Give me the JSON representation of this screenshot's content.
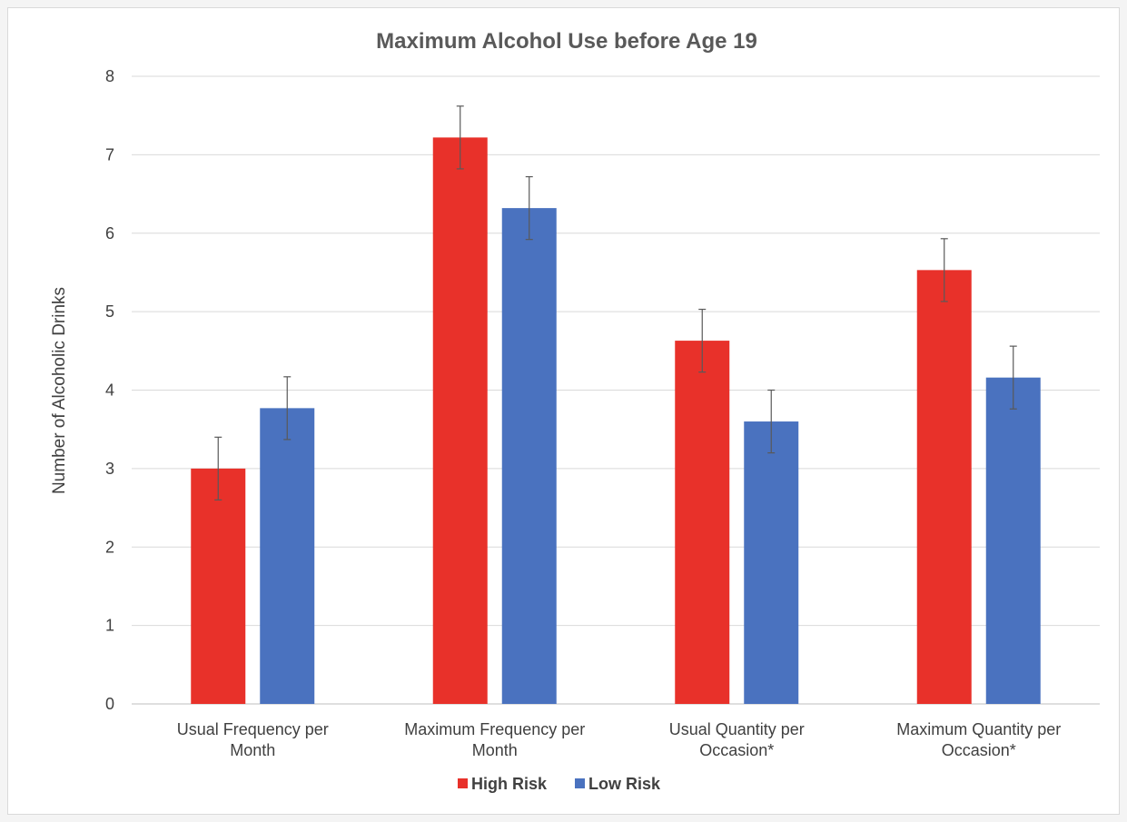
{
  "chart_data": {
    "type": "bar",
    "title": "Maximum Alcohol Use before Age 19",
    "ylabel": "Number of Alcoholic Drinks",
    "xlabel": "",
    "ylim": [
      0,
      8
    ],
    "yticks": [
      0,
      1,
      2,
      3,
      4,
      5,
      6,
      7,
      8
    ],
    "grid": true,
    "legend_position": "bottom",
    "categories": [
      [
        "Usual Frequency per",
        "Month"
      ],
      [
        "Maximum Frequency per",
        "Month"
      ],
      [
        "Usual Quantity per",
        "Occasion*"
      ],
      [
        "Maximum Quantity per",
        "Occasion*"
      ]
    ],
    "series": [
      {
        "name": "High Risk",
        "color": "#e8312a",
        "values": [
          3.0,
          7.22,
          4.63,
          5.53
        ],
        "error": [
          0.4,
          0.4,
          0.4,
          0.4
        ]
      },
      {
        "name": "Low Risk",
        "color": "#4a72bf",
        "values": [
          3.77,
          6.32,
          3.6,
          4.16
        ],
        "error": [
          0.4,
          0.4,
          0.4,
          0.4
        ]
      }
    ]
  }
}
